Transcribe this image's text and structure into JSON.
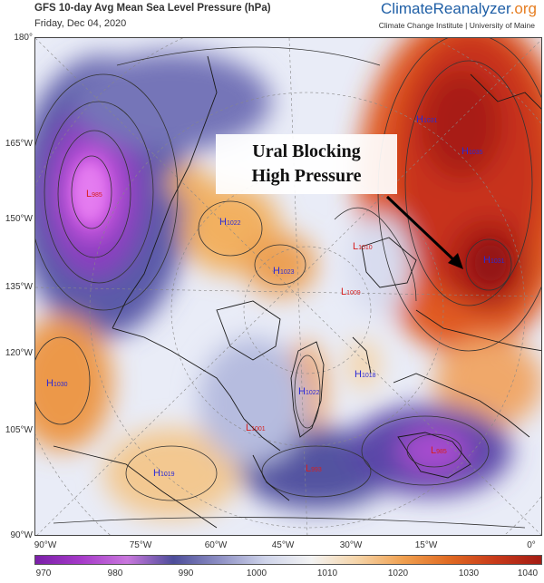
{
  "header": {
    "title": "GFS 10-day Avg Mean Sea Level Pressure (hPa)",
    "date": "Friday, Dec 04, 2020",
    "brand_main": "ClimateReanalyzer",
    "brand_suffix": ".org",
    "subtitle": "Climate Change Institute | University of Maine"
  },
  "annotation": {
    "line1": "Ural Blocking",
    "line2": "High Pressure"
  },
  "lat_labels": [
    "180°",
    "165°W",
    "150°W",
    "135°W",
    "120°W",
    "105°W",
    "90°W"
  ],
  "lon_labels": [
    "90°W",
    "75°W",
    "60°W",
    "45°W",
    "30°W",
    "15°W",
    "0°"
  ],
  "colorbar": {
    "ticks": [
      "970",
      "980",
      "990",
      "1000",
      "1010",
      "1020",
      "1030",
      "1040"
    ],
    "colors": [
      "#7a1fa8",
      "#a63ac9",
      "#c977dd",
      "#4d4d9a",
      "#8d8fc4",
      "#cfd4ea",
      "#f3f3f3",
      "#f5d4a8",
      "#f0a050",
      "#e06a22",
      "#c83a1a",
      "#a41c14"
    ]
  },
  "pressure_centers": [
    {
      "type": "L",
      "value": "985"
    },
    {
      "type": "H",
      "value": "1022"
    },
    {
      "type": "H",
      "value": "1023"
    },
    {
      "type": "L",
      "value": "1010"
    },
    {
      "type": "L",
      "value": "1009"
    },
    {
      "type": "H",
      "value": "1031"
    },
    {
      "type": "H",
      "value": "1035"
    },
    {
      "type": "H",
      "value": "1031"
    },
    {
      "type": "H",
      "value": "1030"
    },
    {
      "type": "H",
      "value": "1022"
    },
    {
      "type": "H",
      "value": "1018"
    },
    {
      "type": "L",
      "value": "1001"
    },
    {
      "type": "H",
      "value": "1019"
    },
    {
      "type": "L",
      "value": "993"
    },
    {
      "type": "L",
      "value": "985"
    }
  ]
}
